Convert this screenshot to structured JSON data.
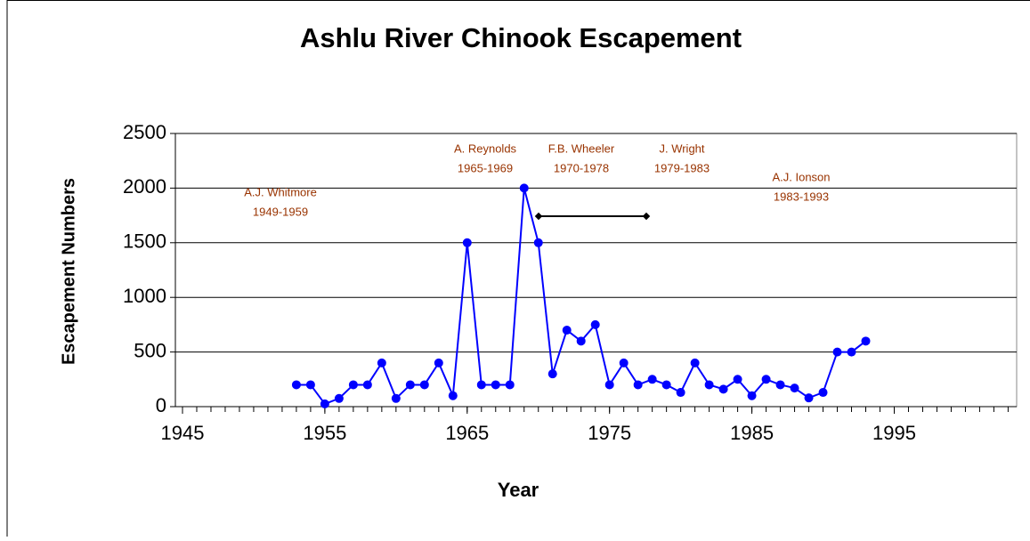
{
  "chart_data": {
    "type": "line",
    "title": "Ashlu River Chinook Escapement",
    "x_label": "Year",
    "y_label": "Escapement Numbers",
    "x": [
      1953,
      1954,
      1955,
      1956,
      1957,
      1958,
      1959,
      1960,
      1961,
      1962,
      1963,
      1964,
      1965,
      1966,
      1967,
      1968,
      1969,
      1970,
      1971,
      1972,
      1973,
      1974,
      1975,
      1976,
      1977,
      1978,
      1979,
      1980,
      1981,
      1982,
      1983,
      1984,
      1985,
      1986,
      1987,
      1988,
      1989,
      1990,
      1991,
      1992,
      1993
    ],
    "series": [
      {
        "name": "Escapement",
        "color": "#0000ff",
        "values": [
          200,
          200,
          25,
          75,
          200,
          200,
          400,
          75,
          200,
          200,
          400,
          100,
          1500,
          200,
          200,
          200,
          2000,
          1500,
          300,
          700,
          600,
          750,
          200,
          400,
          200,
          250,
          200,
          130,
          400,
          200,
          160,
          250,
          100,
          250,
          200,
          170,
          80,
          130,
          500,
          500,
          600
        ]
      }
    ],
    "xlim": [
      1944.5,
      2003.6
    ],
    "xticks": [
      1945,
      1955,
      1965,
      1975,
      1985,
      1995
    ],
    "ylim": [
      0,
      2500
    ],
    "yticks": [
      0,
      500,
      1000,
      1500,
      2000,
      2500
    ],
    "grid": true,
    "annotations": [
      {
        "name": "A.J. Whitmore",
        "period": "1949-1959"
      },
      {
        "name": "A. Reynolds",
        "period": "1965-1969"
      },
      {
        "name": "F.B. Wheeler",
        "period": "1970-1978"
      },
      {
        "name": "J. Wright",
        "period": "1979-1983"
      },
      {
        "name": "A.J. Ionson",
        "period": "1983-1993"
      }
    ]
  }
}
